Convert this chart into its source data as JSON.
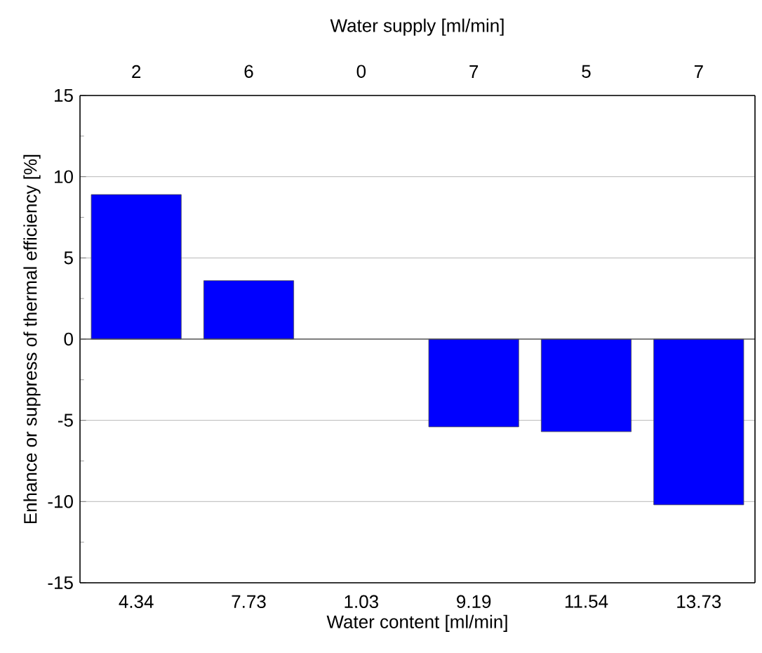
{
  "chart_data": {
    "type": "bar",
    "xlabel": "Water content [ml/min]",
    "ylabel": "Enhance or suppress of thermal efficiency [%]",
    "x2label": "Water supply [ml/min]",
    "categories": [
      "4.34",
      "7.73",
      "1.03",
      "9.19",
      "11.54",
      "13.73"
    ],
    "values": [
      8.9,
      3.6,
      0,
      -5.4,
      -5.7,
      -10.2
    ],
    "color": "#0000ff",
    "ylim": [
      -15,
      15
    ],
    "yticks": [
      -15,
      -10,
      -5,
      0,
      5,
      10,
      15
    ],
    "annotations": [
      "2",
      "6",
      "0",
      "7",
      "5",
      "7"
    ],
    "grid": "y"
  }
}
